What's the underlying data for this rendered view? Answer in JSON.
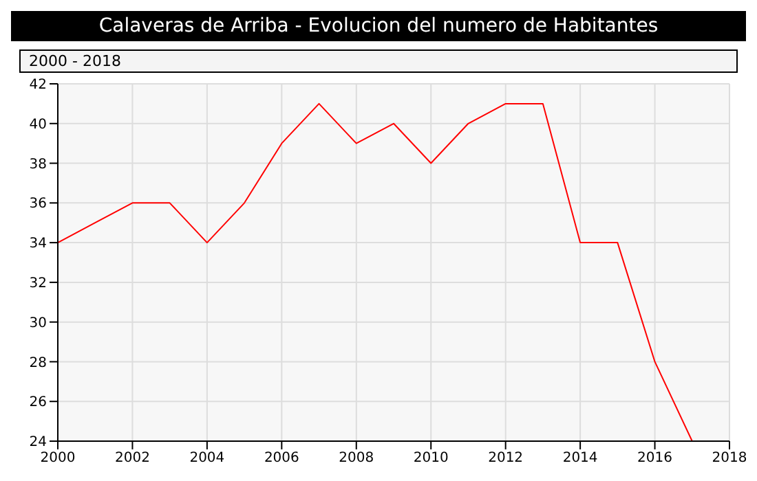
{
  "chart_data": {
    "type": "line",
    "title": "Calaveras de Arriba - Evolucion del numero de Habitantes",
    "subtitle": "2000 - 2018",
    "x": [
      2000,
      2001,
      2002,
      2003,
      2004,
      2005,
      2006,
      2007,
      2008,
      2009,
      2010,
      2011,
      2012,
      2013,
      2014,
      2015,
      2016,
      2017
    ],
    "series": [
      {
        "color": "#ff0000",
        "values": [
          34,
          35,
          36,
          36,
          34,
          36,
          39,
          41,
          39,
          40,
          38,
          40,
          41,
          41,
          34,
          34,
          28,
          24
        ]
      }
    ],
    "xlim": [
      2000,
      2018
    ],
    "xticks": [
      2000,
      2002,
      2004,
      2006,
      2008,
      2010,
      2012,
      2014,
      2016,
      2018
    ],
    "ylim": [
      24,
      42
    ],
    "yticks": [
      24,
      26,
      28,
      30,
      32,
      34,
      36,
      38,
      40,
      42
    ],
    "grid": true,
    "marker": "none",
    "line_style": "solid"
  }
}
